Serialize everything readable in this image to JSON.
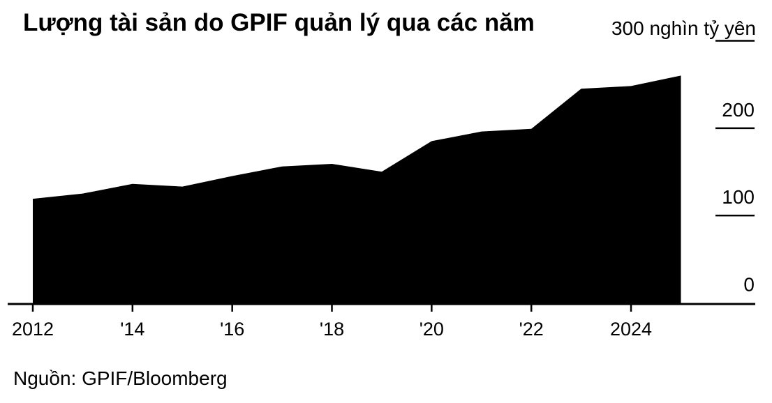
{
  "header": {
    "title": "Lượng tài sản do GPIF quản lý qua các năm",
    "unit_label": "300 nghìn tỷ yên"
  },
  "source": "Nguồn: GPIF/Bloomberg",
  "chart_data": {
    "type": "area",
    "series_name": "Tài sản do GPIF quản lý",
    "x": [
      2012,
      2013,
      2014,
      2015,
      2016,
      2017,
      2018,
      2019,
      2020,
      2021,
      2022,
      2023,
      2024,
      2025
    ],
    "values": [
      120,
      126,
      137,
      134,
      146,
      157,
      160,
      151,
      186,
      197,
      200,
      246,
      249,
      261
    ],
    "title": "Lượng tài sản do GPIF quản lý qua các năm",
    "xlabel": "",
    "ylabel": "nghìn tỷ yên",
    "xlim": [
      2012,
      2025
    ],
    "ylim": [
      0,
      300
    ],
    "grid": false,
    "legend": false,
    "x_ticks": [
      {
        "year": 2012,
        "label": "2012"
      },
      {
        "year": 2014,
        "label": "'14"
      },
      {
        "year": 2016,
        "label": "'16"
      },
      {
        "year": 2018,
        "label": "'18"
      },
      {
        "year": 2020,
        "label": "'20"
      },
      {
        "year": 2022,
        "label": "'22"
      },
      {
        "year": 2024,
        "label": "2024"
      }
    ],
    "y_ticks": [
      {
        "value": 0,
        "label": "0"
      },
      {
        "value": 100,
        "label": "100"
      },
      {
        "value": 200,
        "label": "200"
      },
      {
        "value": 300,
        "label": ""
      }
    ],
    "colors": {
      "area_fill": "#000000",
      "axis": "#000000",
      "text": "#000000",
      "background": "#ffffff"
    }
  }
}
